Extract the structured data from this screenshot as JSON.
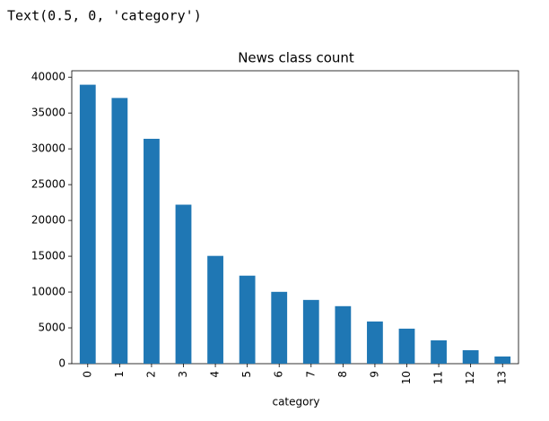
{
  "cell_output": "Text(0.5, 0, 'category')",
  "chart_data": {
    "type": "bar",
    "title": "News class count",
    "x_label": "category",
    "categories": [
      "0",
      "1",
      "2",
      "3",
      "4",
      "5",
      "6",
      "7",
      "8",
      "9",
      "10",
      "11",
      "12",
      "13"
    ],
    "values": [
      38950,
      37100,
      31400,
      22200,
      15050,
      12290,
      10030,
      8900,
      8030,
      5890,
      4890,
      3260,
      1880,
      1000
    ],
    "color": "#1f77b4",
    "ylim": [
      0,
      40900
    ],
    "yticks": [
      0,
      5000,
      10000,
      15000,
      20000,
      25000,
      30000,
      35000,
      40000
    ]
  }
}
